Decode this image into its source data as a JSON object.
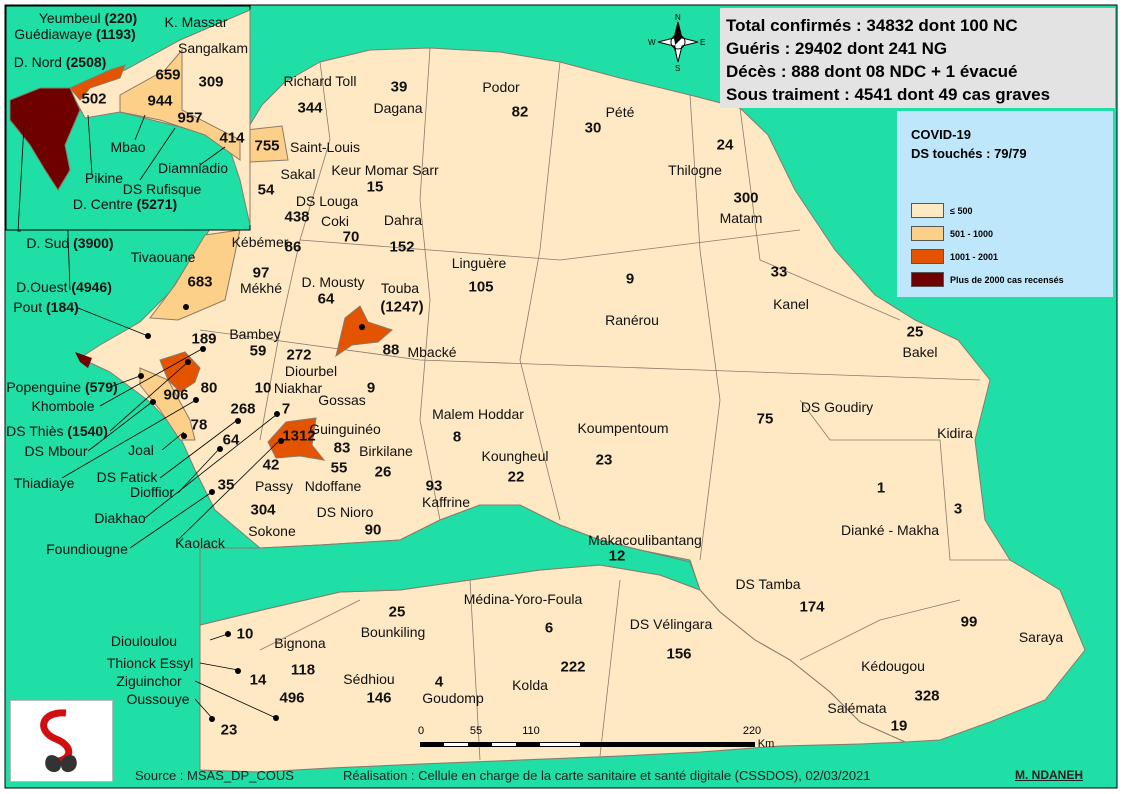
{
  "stats": {
    "confirmed": "Total confirmés : 34832 dont 100 NC",
    "recovered": "Guéris : 29402 dont 241 NG",
    "deaths": "Décès : 888 dont 08 NDC + 1 évacué",
    "under_treatment": "Sous traiment : 4541 dont 49 cas graves"
  },
  "legend": {
    "title": "COVID-19",
    "subtitle": "DS touchés : 79/79",
    "items": [
      {
        "label": "≤ 500",
        "color": "#ffe8c4"
      },
      {
        "label": "501 - 1000",
        "color": "#fdd08a"
      },
      {
        "label": "1001 - 2001",
        "color": "#e35300"
      },
      {
        "label": "Plus de 2000 cas recensés",
        "color": "#6e0000"
      }
    ]
  },
  "colors": {
    "sea": "#1fdfa6",
    "land": "#ffe8c4",
    "border": "#8a7a6a"
  },
  "district_names": [
    "Richard Toll",
    "Dagana",
    "Podor",
    "Pété",
    "Thilogne",
    "Matam",
    "Saint-Louis",
    "Keur Momar Sarr",
    "Sakal",
    "DS Louga",
    "Coki",
    "Dahra",
    "Kébémer",
    "Tivaouane",
    "Mékhé",
    "D. Mousty",
    "Touba",
    "Linguère",
    "Ranérou",
    "Kanel",
    "Bakel",
    "Bambey",
    "Diourbel",
    "Niakhar",
    "Mbacké",
    "Gossas",
    "Malem Hoddar",
    "Koumpentoum",
    "DS Goudiry",
    "Kidira",
    "Guinguinéo",
    "Birkilane",
    "Koungheul",
    "Passy",
    "Ndoffane",
    "Kaffrine",
    "Sokone",
    "DS Nioro",
    "Dianké - Makha",
    "Makacoulibantang",
    "DS Tamba",
    "Saraya",
    "Kédougou",
    "Salémata",
    "Bounkiling",
    "Médina-Yoro-Foula",
    "DS Vélingara",
    "Kolda",
    "Sédhiou",
    "Goudomp",
    "Bignona",
    "Diouloulou",
    "Thionck Essyl",
    "Ziguinchor",
    "Oussouye",
    "Joal",
    "DS Fatick",
    "Dioffior",
    "Diakhao",
    "Foundiougne",
    "Kaolack",
    "Thiadiaye",
    "DS Mbour",
    "Khombole",
    "Mbao",
    "Diamniadio",
    "Pikine",
    "DS Rufisque",
    "K. Massar",
    "Sangalkam"
  ],
  "case_counts": [
    "344",
    "39",
    "82",
    "30",
    "24",
    "300",
    "755",
    "15",
    "54",
    "438",
    "70",
    "152",
    "86",
    "683",
    "97",
    "64",
    "(1247)",
    "105",
    "9",
    "33",
    "25",
    "59",
    "272",
    "189",
    "80",
    "906",
    "10",
    "88",
    "9",
    "268",
    "7",
    "8",
    "23",
    "75",
    "3",
    "83",
    "26",
    "22",
    "78",
    "64",
    "1312",
    "42",
    "55",
    "93",
    "35",
    "304",
    "90",
    "1",
    "12",
    "174",
    "99",
    "328",
    "19",
    "25",
    "6",
    "156",
    "222",
    "146",
    "4",
    "118",
    "10",
    "14",
    "496",
    "23",
    "659",
    "309",
    "502",
    "944",
    "957",
    "414"
  ],
  "callouts": [
    {
      "name": "Yeumbeul",
      "cases": "(220)"
    },
    {
      "name": "Guédiawaye",
      "cases": "(1193)"
    },
    {
      "name": "D. Nord",
      "cases": "(2508)"
    },
    {
      "name": "D. Centre",
      "cases": "(5271)"
    },
    {
      "name": "D. Sud",
      "cases": "(3900)"
    },
    {
      "name": "D.Ouest",
      "cases": "(4946)"
    },
    {
      "name": "Pout",
      "cases": "(184)"
    },
    {
      "name": "Popenguine",
      "cases": "(579)"
    },
    {
      "name": "DS Thiès",
      "cases": "(1540)"
    }
  ],
  "scale": {
    "ticks": [
      "0",
      "55",
      "110",
      "220"
    ],
    "unit": "Km"
  },
  "compass": {
    "n": "N",
    "s": "S",
    "e": "E",
    "w": "W"
  },
  "footer": {
    "source": "Source : MSAS_DP_COUS",
    "credit": "Réalisation : Cellule en charge de la carte sanitaire et santé digitale (CSSDOS), 02/03/2021",
    "author": "M. NDANEH"
  }
}
